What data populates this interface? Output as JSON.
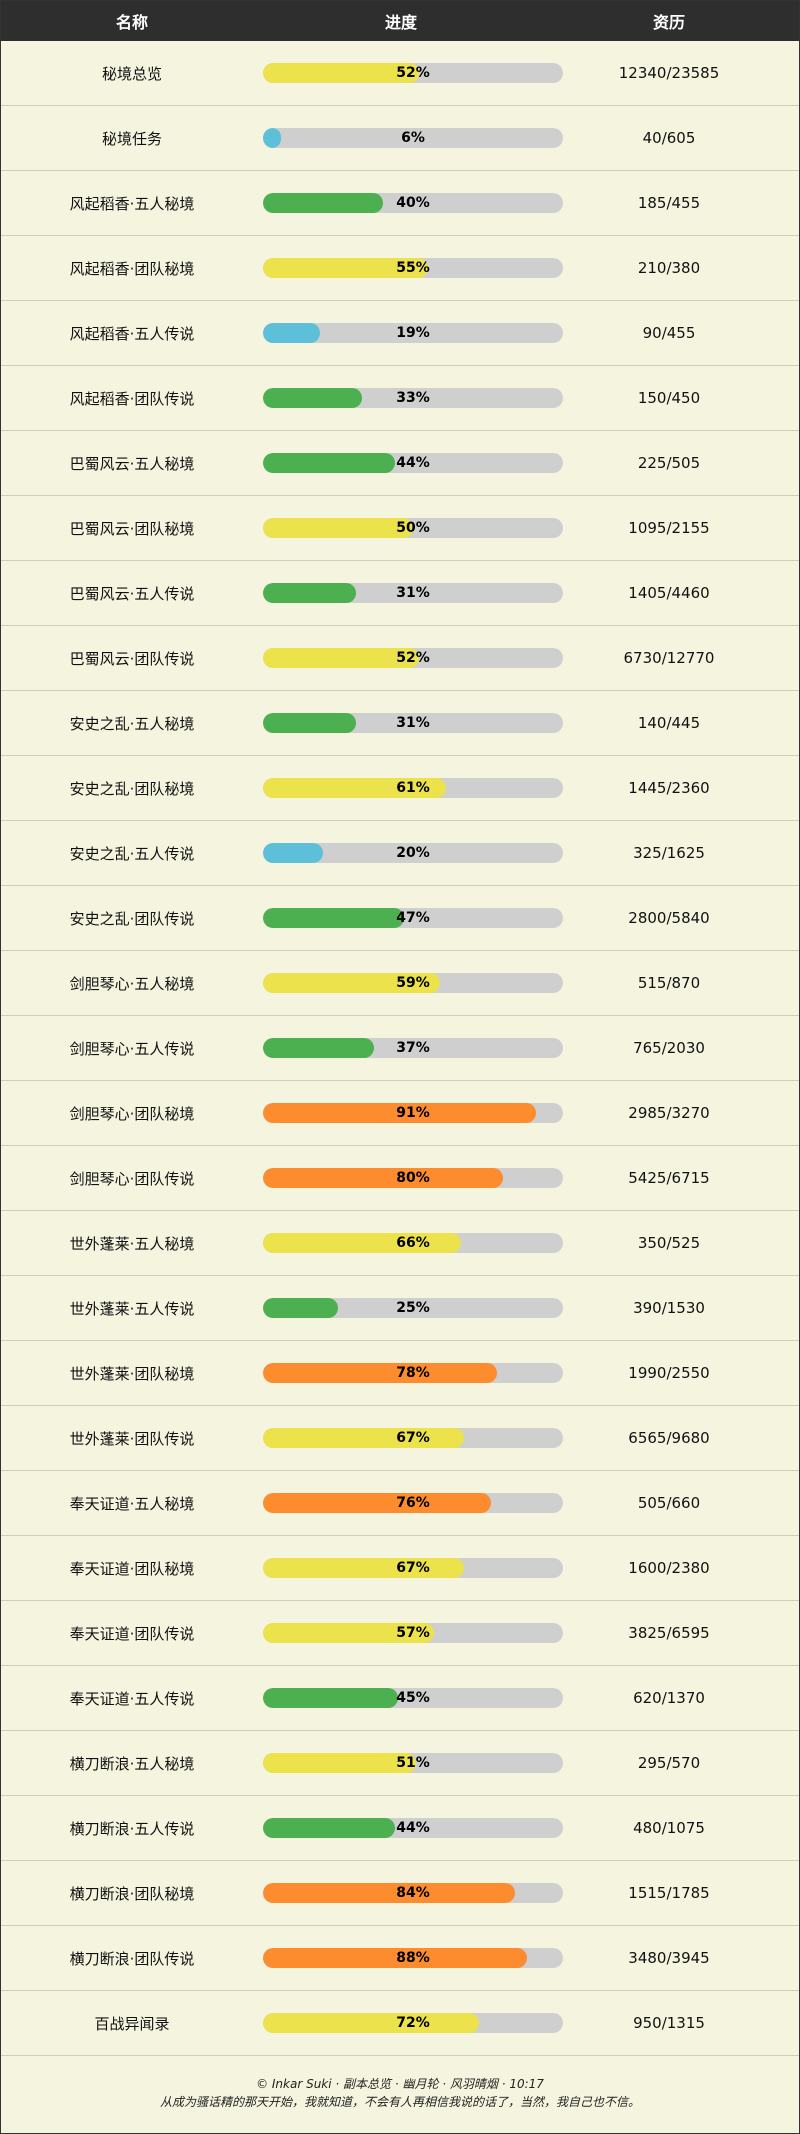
{
  "header": {
    "col_name": "名称",
    "col_progress": "进度",
    "col_exp": "资历"
  },
  "colors": {
    "yellow": "#ece24b",
    "blue": "#5dbfd8",
    "green": "#4caf50",
    "orange": "#fd8c2e"
  },
  "rows": [
    {
      "name": "秘境总览",
      "pct": 52,
      "exp": "12340/23585",
      "color": "yellow"
    },
    {
      "name": "秘境任务",
      "pct": 6,
      "exp": "40/605",
      "color": "blue"
    },
    {
      "name": "风起稻香·五人秘境",
      "pct": 40,
      "exp": "185/455",
      "color": "green"
    },
    {
      "name": "风起稻香·团队秘境",
      "pct": 55,
      "exp": "210/380",
      "color": "yellow"
    },
    {
      "name": "风起稻香·五人传说",
      "pct": 19,
      "exp": "90/455",
      "color": "blue"
    },
    {
      "name": "风起稻香·团队传说",
      "pct": 33,
      "exp": "150/450",
      "color": "green"
    },
    {
      "name": "巴蜀风云·五人秘境",
      "pct": 44,
      "exp": "225/505",
      "color": "green"
    },
    {
      "name": "巴蜀风云·团队秘境",
      "pct": 50,
      "exp": "1095/2155",
      "color": "yellow"
    },
    {
      "name": "巴蜀风云·五人传说",
      "pct": 31,
      "exp": "1405/4460",
      "color": "green"
    },
    {
      "name": "巴蜀风云·团队传说",
      "pct": 52,
      "exp": "6730/12770",
      "color": "yellow"
    },
    {
      "name": "安史之乱·五人秘境",
      "pct": 31,
      "exp": "140/445",
      "color": "green"
    },
    {
      "name": "安史之乱·团队秘境",
      "pct": 61,
      "exp": "1445/2360",
      "color": "yellow"
    },
    {
      "name": "安史之乱·五人传说",
      "pct": 20,
      "exp": "325/1625",
      "color": "blue"
    },
    {
      "name": "安史之乱·团队传说",
      "pct": 47,
      "exp": "2800/5840",
      "color": "green"
    },
    {
      "name": "剑胆琴心·五人秘境",
      "pct": 59,
      "exp": "515/870",
      "color": "yellow"
    },
    {
      "name": "剑胆琴心·五人传说",
      "pct": 37,
      "exp": "765/2030",
      "color": "green"
    },
    {
      "name": "剑胆琴心·团队秘境",
      "pct": 91,
      "exp": "2985/3270",
      "color": "orange"
    },
    {
      "name": "剑胆琴心·团队传说",
      "pct": 80,
      "exp": "5425/6715",
      "color": "orange"
    },
    {
      "name": "世外蓬莱·五人秘境",
      "pct": 66,
      "exp": "350/525",
      "color": "yellow"
    },
    {
      "name": "世外蓬莱·五人传说",
      "pct": 25,
      "exp": "390/1530",
      "color": "green"
    },
    {
      "name": "世外蓬莱·团队秘境",
      "pct": 78,
      "exp": "1990/2550",
      "color": "orange"
    },
    {
      "name": "世外蓬莱·团队传说",
      "pct": 67,
      "exp": "6565/9680",
      "color": "yellow"
    },
    {
      "name": "奉天证道·五人秘境",
      "pct": 76,
      "exp": "505/660",
      "color": "orange"
    },
    {
      "name": "奉天证道·团队秘境",
      "pct": 67,
      "exp": "1600/2380",
      "color": "yellow"
    },
    {
      "name": "奉天证道·团队传说",
      "pct": 57,
      "exp": "3825/6595",
      "color": "yellow"
    },
    {
      "name": "奉天证道·五人传说",
      "pct": 45,
      "exp": "620/1370",
      "color": "green"
    },
    {
      "name": "横刀断浪·五人秘境",
      "pct": 51,
      "exp": "295/570",
      "color": "yellow"
    },
    {
      "name": "横刀断浪·五人传说",
      "pct": 44,
      "exp": "480/1075",
      "color": "green"
    },
    {
      "name": "横刀断浪·团队秘境",
      "pct": 84,
      "exp": "1515/1785",
      "color": "orange"
    },
    {
      "name": "横刀断浪·团队传说",
      "pct": 88,
      "exp": "3480/3945",
      "color": "orange"
    },
    {
      "name": "百战异闻录",
      "pct": 72,
      "exp": "950/1315",
      "color": "yellow"
    }
  ],
  "footer": {
    "line1": "© Inkar Suki · 副本总览 · 幽月轮 · 风羽晴烟 · 10:17",
    "line2": "从成为骚话精的那天开始，我就知道，不会有人再相信我说的话了，当然，我自己也不信。"
  }
}
